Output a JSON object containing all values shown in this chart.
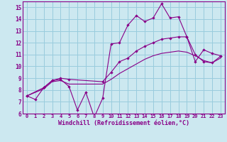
{
  "xlabel": "Windchill (Refroidissement éolien,°C)",
  "bg_color": "#cce8f0",
  "line_color": "#880088",
  "grid_color": "#99ccdd",
  "spine_color": "#880088",
  "xlim": [
    -0.5,
    23.5
  ],
  "ylim": [
    6,
    15.5
  ],
  "xticks": [
    0,
    1,
    2,
    3,
    4,
    5,
    6,
    7,
    8,
    9,
    10,
    11,
    12,
    13,
    14,
    15,
    16,
    17,
    18,
    19,
    20,
    21,
    22,
    23
  ],
  "yticks": [
    6,
    7,
    8,
    9,
    10,
    11,
    12,
    13,
    14,
    15
  ],
  "line1_x": [
    0,
    1,
    2,
    3,
    4,
    5,
    6,
    7,
    8,
    9,
    10,
    11,
    12,
    13,
    14,
    15,
    16,
    17,
    18,
    19,
    20,
    21,
    22,
    23
  ],
  "line1_y": [
    7.5,
    7.2,
    8.2,
    8.8,
    8.9,
    8.3,
    6.3,
    7.8,
    5.7,
    7.3,
    11.9,
    12.0,
    13.5,
    14.3,
    13.8,
    14.1,
    15.3,
    14.1,
    14.2,
    12.5,
    10.4,
    11.4,
    11.1,
    10.9
  ],
  "line2_x": [
    0,
    2,
    3,
    4,
    5,
    9,
    10,
    11,
    12,
    13,
    14,
    15,
    16,
    17,
    18,
    19,
    20,
    21,
    22,
    23
  ],
  "line2_y": [
    7.5,
    8.2,
    8.8,
    9.0,
    8.9,
    8.7,
    9.5,
    10.4,
    10.7,
    11.3,
    11.7,
    12.0,
    12.3,
    12.4,
    12.5,
    12.5,
    11.0,
    10.4,
    10.3,
    10.85
  ],
  "line3_x": [
    0,
    2,
    3,
    4,
    5,
    9,
    10,
    11,
    12,
    13,
    14,
    15,
    16,
    17,
    18,
    19,
    20,
    21,
    22,
    23
  ],
  "line3_y": [
    7.5,
    8.1,
    8.7,
    8.8,
    8.5,
    8.5,
    8.9,
    9.4,
    9.8,
    10.2,
    10.6,
    10.9,
    11.1,
    11.2,
    11.3,
    11.2,
    10.9,
    10.5,
    10.3,
    10.7
  ]
}
